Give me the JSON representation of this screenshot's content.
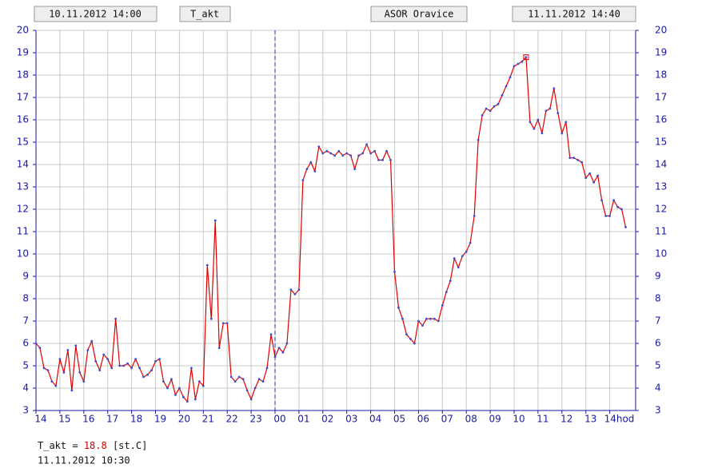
{
  "chart_data": {
    "type": "line",
    "start_label": "10.11.2012 14:00",
    "station": "ASOR Oravice",
    "end_label": "11.11.2012 14:40",
    "x": [
      0,
      10,
      20,
      30,
      40,
      50,
      60,
      70,
      80,
      90,
      100,
      110,
      120,
      130,
      140,
      150,
      160,
      170,
      180,
      190,
      200,
      210,
      220,
      230,
      240,
      250,
      260,
      270,
      280,
      290,
      300,
      310,
      320,
      330,
      340,
      350,
      360,
      370,
      380,
      390,
      400,
      410,
      420,
      430,
      440,
      450,
      460,
      470,
      480,
      490,
      500,
      510,
      520,
      530,
      540,
      550,
      560,
      570,
      580,
      590,
      600,
      610,
      620,
      630,
      640,
      650,
      660,
      670,
      680,
      690,
      700,
      710,
      720,
      730,
      740,
      750,
      760,
      770,
      780,
      790,
      800,
      810,
      820,
      830,
      840,
      850,
      860,
      870,
      880,
      890,
      900,
      910,
      920,
      930,
      940,
      950,
      960,
      970,
      980,
      990,
      1000,
      1010,
      1020,
      1030,
      1040,
      1050,
      1060,
      1070,
      1080,
      1090,
      1100,
      1110,
      1120,
      1130,
      1140,
      1150,
      1160,
      1170,
      1180,
      1190,
      1200,
      1210,
      1220,
      1230,
      1240,
      1250,
      1260,
      1270,
      1280,
      1290,
      1300,
      1310,
      1320,
      1330,
      1340,
      1350,
      1360,
      1370,
      1380,
      1390,
      1400,
      1410,
      1420,
      1430,
      1440,
      1450,
      1460,
      1470,
      1480
    ],
    "series": [
      {
        "name": "T_akt",
        "color": "#e00000",
        "point_color": "#3a4fd0",
        "values": [
          6.0,
          5.8,
          4.9,
          4.8,
          4.3,
          4.1,
          5.3,
          4.7,
          5.7,
          3.9,
          5.9,
          4.7,
          4.3,
          5.7,
          6.1,
          5.2,
          4.8,
          5.5,
          5.3,
          4.9,
          7.1,
          5.0,
          5.0,
          5.1,
          4.9,
          5.3,
          4.9,
          4.5,
          4.6,
          4.8,
          5.2,
          5.3,
          4.3,
          4.0,
          4.4,
          3.7,
          4.0,
          3.6,
          3.4,
          4.9,
          3.5,
          4.3,
          4.1,
          9.5,
          7.1,
          11.5,
          5.8,
          6.9,
          6.9,
          4.5,
          4.3,
          4.5,
          4.4,
          3.9,
          3.5,
          4.0,
          4.4,
          4.3,
          4.9,
          6.4,
          5.4,
          5.8,
          5.6,
          6.0,
          8.4,
          8.2,
          8.4,
          13.3,
          13.8,
          14.1,
          13.7,
          14.8,
          14.5,
          14.6,
          14.5,
          14.4,
          14.6,
          14.4,
          14.5,
          14.4,
          13.8,
          14.4,
          14.5,
          14.9,
          14.5,
          14.6,
          14.2,
          14.2,
          14.6,
          14.2,
          9.2,
          7.6,
          7.1,
          6.4,
          6.2,
          6.0,
          7.0,
          6.8,
          7.1,
          7.1,
          7.1,
          7.0,
          7.7,
          8.3,
          8.8,
          9.8,
          9.4,
          9.9,
          10.1,
          10.5,
          11.7,
          15.1,
          16.2,
          16.5,
          16.4,
          16.6,
          16.7,
          17.1,
          17.5,
          17.9,
          18.4,
          18.5,
          18.6,
          18.8,
          15.9,
          15.6,
          16.0,
          15.4,
          16.4,
          16.5,
          17.4,
          16.3,
          15.4,
          15.9,
          14.3,
          14.3,
          14.2,
          14.1,
          13.4,
          13.6,
          13.2,
          13.5,
          12.4,
          11.7,
          11.7,
          12.4,
          12.1,
          12.0,
          11.2
        ]
      }
    ],
    "unit": "[st.C]",
    "readout_time": "11.11.2012 10:30",
    "xlim": [
      0,
      1505
    ],
    "xticks": [
      {
        "value": 0,
        "label": "14"
      },
      {
        "value": 60,
        "label": "15"
      },
      {
        "value": 120,
        "label": "16"
      },
      {
        "value": 180,
        "label": "17"
      },
      {
        "value": 240,
        "label": "18"
      },
      {
        "value": 300,
        "label": "19"
      },
      {
        "value": 360,
        "label": "20"
      },
      {
        "value": 420,
        "label": "21"
      },
      {
        "value": 480,
        "label": "22"
      },
      {
        "value": 540,
        "label": "23"
      },
      {
        "value": 600,
        "label": "00"
      },
      {
        "value": 660,
        "label": "01"
      },
      {
        "value": 720,
        "label": "02"
      },
      {
        "value": 780,
        "label": "03"
      },
      {
        "value": 840,
        "label": "04"
      },
      {
        "value": 900,
        "label": "05"
      },
      {
        "value": 960,
        "label": "06"
      },
      {
        "value": 1020,
        "label": "07"
      },
      {
        "value": 1080,
        "label": "08"
      },
      {
        "value": 1140,
        "label": "09"
      },
      {
        "value": 1200,
        "label": "10"
      },
      {
        "value": 1260,
        "label": "11"
      },
      {
        "value": 1320,
        "label": "12"
      },
      {
        "value": 1380,
        "label": "13"
      },
      {
        "value": 1440,
        "label": "14hod"
      }
    ],
    "ylim": [
      3,
      20
    ],
    "yticks": [
      3,
      4,
      5,
      6,
      7,
      8,
      9,
      10,
      11,
      12,
      13,
      14,
      15,
      16,
      17,
      18,
      19,
      20
    ],
    "grid": true
  }
}
